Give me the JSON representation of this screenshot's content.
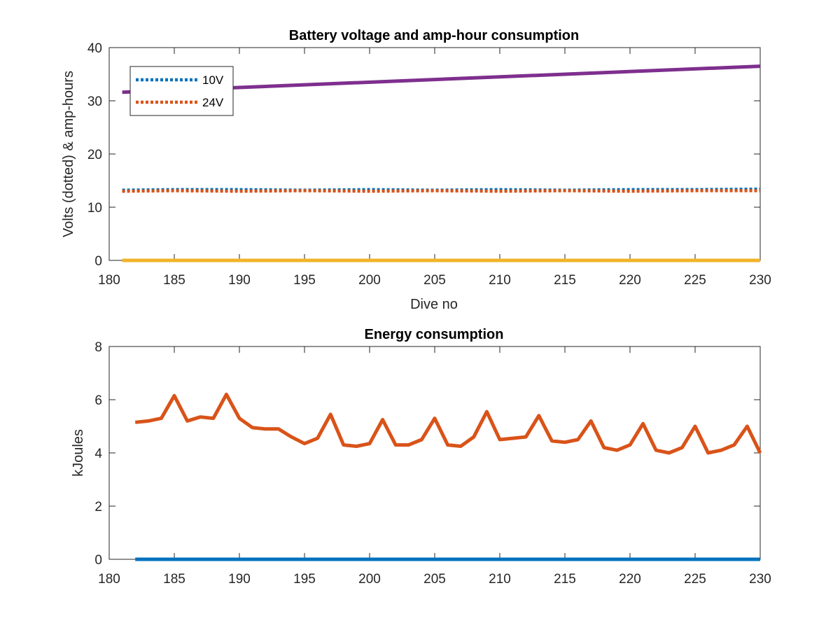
{
  "chart_data": [
    {
      "type": "line",
      "title": "Battery voltage and amp-hour consumption",
      "xlabel": "Dive no",
      "ylabel": "Volts (dotted) & amp-hours",
      "xlim": [
        180,
        230
      ],
      "ylim": [
        0,
        40
      ],
      "xticks": [
        180,
        185,
        190,
        195,
        200,
        205,
        210,
        215,
        220,
        225,
        230
      ],
      "yticks": [
        0,
        10,
        20,
        30,
        40
      ],
      "legend": {
        "placement": "top-left",
        "entries": [
          {
            "label": "10V",
            "color": "#0072BD",
            "style": "dotted"
          },
          {
            "label": "24V",
            "color": "#D95319",
            "style": "dotted"
          }
        ]
      },
      "series": [
        {
          "name": "10V",
          "color": "#0072BD",
          "style": "dotted",
          "x": [
            181,
            185,
            190,
            195,
            200,
            205,
            210,
            215,
            220,
            225,
            230
          ],
          "y": [
            13.2,
            13.3,
            13.3,
            13.2,
            13.3,
            13.2,
            13.3,
            13.2,
            13.3,
            13.3,
            13.4
          ]
        },
        {
          "name": "24V",
          "color": "#D95319",
          "style": "dotted",
          "x": [
            181,
            185,
            190,
            195,
            200,
            205,
            210,
            215,
            220,
            225,
            230
          ],
          "y": [
            13.0,
            13.1,
            13.0,
            13.1,
            13.0,
            13.1,
            13.0,
            13.1,
            13.0,
            13.1,
            13.1
          ]
        },
        {
          "color": "#F0B429",
          "style": "solid",
          "x": [
            181,
            230
          ],
          "y": [
            0,
            0
          ]
        },
        {
          "color": "#7E2F8E",
          "style": "solid",
          "x": [
            181,
            230
          ],
          "y": [
            31.6,
            36.5
          ]
        }
      ]
    },
    {
      "type": "line",
      "title": "Energy consumption",
      "xlabel": "",
      "ylabel": "kJoules",
      "xlim": [
        180,
        230
      ],
      "ylim": [
        0,
        8
      ],
      "xticks": [
        180,
        185,
        190,
        195,
        200,
        205,
        210,
        215,
        220,
        225,
        230
      ],
      "yticks": [
        0,
        2,
        4,
        6,
        8
      ],
      "series": [
        {
          "color": "#0072BD",
          "style": "solid",
          "x": [
            182,
            230
          ],
          "y": [
            0,
            0
          ]
        },
        {
          "color": "#D95319",
          "style": "solid",
          "x": [
            182,
            183,
            184,
            185,
            186,
            187,
            188,
            189,
            190,
            191,
            192,
            193,
            194,
            195,
            196,
            197,
            198,
            199,
            200,
            201,
            202,
            203,
            204,
            205,
            206,
            207,
            208,
            209,
            210,
            211,
            212,
            213,
            214,
            215,
            216,
            217,
            218,
            219,
            220,
            221,
            222,
            223,
            224,
            225,
            226,
            227,
            228,
            229,
            230
          ],
          "y": [
            5.15,
            5.2,
            5.3,
            6.15,
            5.2,
            5.35,
            5.3,
            6.2,
            5.3,
            4.95,
            4.9,
            4.9,
            4.6,
            4.35,
            4.55,
            5.45,
            4.3,
            4.25,
            4.35,
            5.25,
            4.3,
            4.3,
            4.5,
            5.3,
            4.3,
            4.25,
            4.6,
            5.55,
            4.5,
            4.55,
            4.6,
            5.4,
            4.45,
            4.4,
            4.5,
            5.2,
            4.2,
            4.1,
            4.3,
            5.1,
            4.1,
            4.0,
            4.2,
            5.0,
            4.0,
            4.1,
            4.3,
            5.0,
            4.0
          ]
        }
      ]
    }
  ]
}
